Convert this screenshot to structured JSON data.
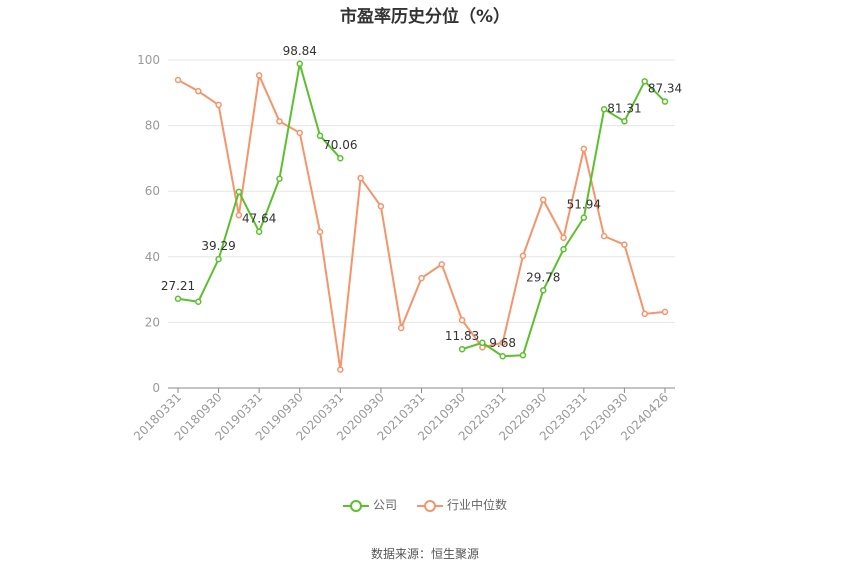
{
  "chart_data": {
    "type": "line",
    "title": "市盈率历史分位（%）",
    "xlabel": "",
    "ylabel": "",
    "ylim": [
      0,
      100
    ],
    "yticks": [
      "0",
      "20",
      "40",
      "60",
      "80",
      "100"
    ],
    "x": [
      "20180331",
      "20180630",
      "20180930",
      "20181231",
      "20190331",
      "20190630",
      "20190930",
      "20191231",
      "20200331",
      "20200630",
      "20200930",
      "20201231",
      "20210331",
      "20210630",
      "20210930",
      "20211231",
      "20220331",
      "20220630",
      "20220930",
      "20221231",
      "20230331",
      "20230630",
      "20230930",
      "20231231",
      "20240426"
    ],
    "x_tick_labels": [
      "20180331",
      "20180930",
      "20190331",
      "20190930",
      "20200331",
      "20200930",
      "20210331",
      "20210930",
      "20220331",
      "20220930",
      "20230331",
      "20230930",
      "20240426"
    ],
    "grid": true,
    "legend_position": "bottom",
    "series": [
      {
        "name": "公司",
        "color": "#5bc02e",
        "values": [
          27.21,
          26.3,
          39.29,
          59.8,
          47.64,
          63.8,
          98.84,
          76.9,
          70.06,
          null,
          null,
          null,
          null,
          null,
          11.83,
          13.8,
          9.68,
          10.0,
          29.78,
          42.3,
          51.94,
          85.0,
          81.31,
          93.5,
          87.34
        ],
        "data_labels": [
          {
            "index": 0,
            "text": "27.21"
          },
          {
            "index": 2,
            "text": "39.29"
          },
          {
            "index": 4,
            "text": "47.64"
          },
          {
            "index": 6,
            "text": "98.84"
          },
          {
            "index": 8,
            "text": "70.06"
          },
          {
            "index": 14,
            "text": "11.83"
          },
          {
            "index": 16,
            "text": "9.68"
          },
          {
            "index": 18,
            "text": "29.78"
          },
          {
            "index": 20,
            "text": "51.94"
          },
          {
            "index": 22,
            "text": "81.31"
          },
          {
            "index": 24,
            "text": "87.34"
          }
        ]
      },
      {
        "name": "行业中位数",
        "color": "#f4956c",
        "values": [
          93.9,
          90.5,
          86.3,
          52.7,
          95.3,
          81.3,
          77.8,
          47.6,
          5.6,
          64.0,
          55.4,
          18.3,
          33.5,
          37.7,
          20.7,
          12.4,
          13.8,
          40.3,
          57.4,
          45.8,
          72.9,
          46.3,
          43.7,
          22.6,
          23.2
        ],
        "data_labels": []
      }
    ]
  },
  "source": "数据来源：恒生聚源"
}
